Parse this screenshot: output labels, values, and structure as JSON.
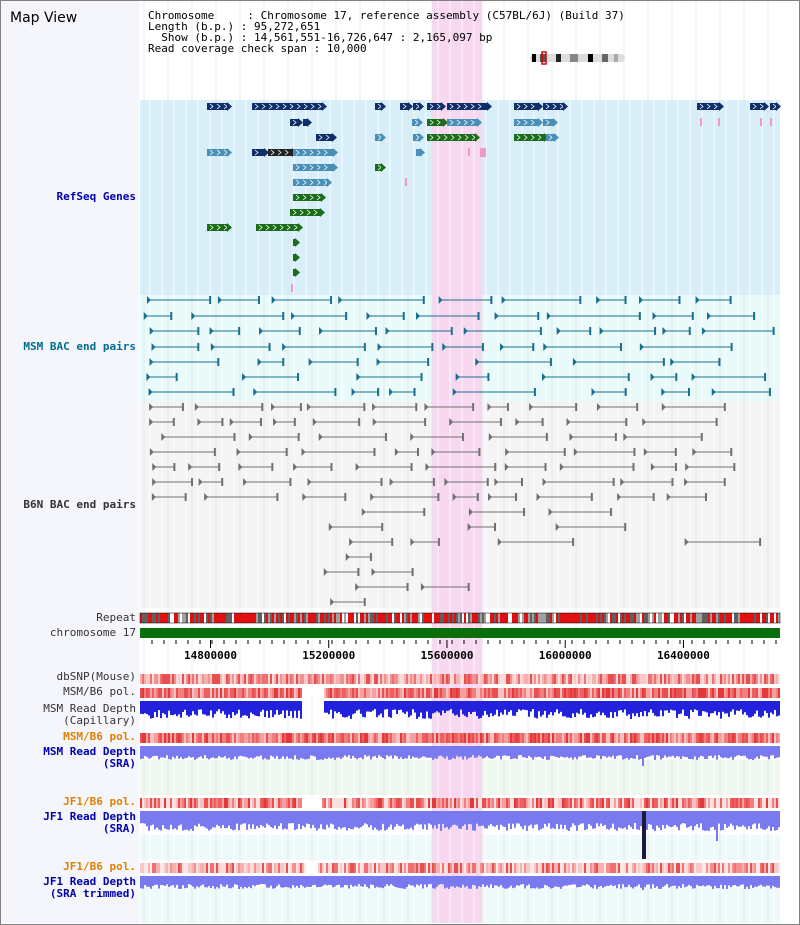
{
  "view_title": "Map View",
  "info": {
    "chromosome_key": "Chromosome",
    "chromosome_val": "Chromosome 17, reference assembly (C57BL/6J) (Build 37)",
    "length_key": "Length (b.p.)",
    "length_val": "95,272,651",
    "show_key": "Show (b.p.)",
    "show_val": "14,561,551-16,726,647 : 2,165,097 bp",
    "coverage_key": "Read coverage check span",
    "coverage_val": "10,000"
  },
  "tracks": {
    "refseq": "RefSeq Genes",
    "msm_bac": "MSM BAC end pairs",
    "b6n_bac": "B6N BAC end pairs",
    "repeat": "Repeat",
    "chromosome": "chromosome 17",
    "dbsnp": "dbSNP(Mouse)",
    "msm_b6_pol": "MSM/B6 pol.",
    "msm_depth_cap_1": "MSM Read Depth",
    "msm_depth_cap_2": "(Capillary)",
    "msm_b6_pol_sra": "MSM/B6 pol.",
    "msm_depth_sra_1": "MSM Read Depth",
    "msm_depth_sra_2": "(SRA)",
    "jf1_b6_pol_1": "JF1/B6 pol.",
    "jf1_depth_sra_1": "JF1 Read Depth",
    "jf1_depth_sra_2": "(SRA)",
    "jf1_b6_pol_2": "JF1/B6 pol.",
    "jf1_depth_trim_1": "JF1 Read Depth",
    "jf1_depth_trim_2": "(SRA trimmed)"
  },
  "axis": {
    "range_start": 14561551,
    "range_end": 16726647,
    "ticks": [
      "14800000",
      "15200000",
      "15600000",
      "16000000",
      "16400000"
    ],
    "tick_values": [
      14800000,
      15200000,
      15600000,
      16000000,
      16400000
    ],
    "highlight_start": 15550000,
    "highlight_end": 15720000
  },
  "colors": {
    "refseq_bg": "#d8effa",
    "msm_bac_bg": "#e8fafa",
    "b6n_bg": "#f4f4f4",
    "highlight": "#f8d8f0",
    "gene_navy": "#102e6a",
    "gene_blue": "#4a8fb8",
    "gene_green": "#1a6e1a",
    "gene_pink": "#f09ac8",
    "msm_bac": "#1a6e8e",
    "b6n_bac": "#707070",
    "chromosome_bar": "#0a6e0a",
    "depth_blue": "#2222dd",
    "depth_lightblue": "#7a7af0",
    "label_blue": "#0000b0",
    "label_orange": "#e08000"
  }
}
